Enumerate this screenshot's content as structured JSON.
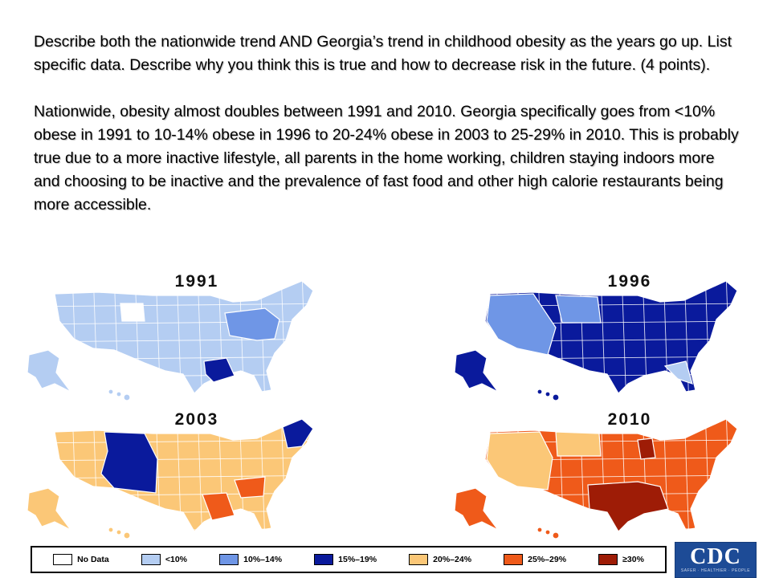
{
  "question": {
    "text": "Describe both the nationwide trend AND Georgia’s trend in childhood obesity as the years go up. List specific data.  Describe why you think this is true and how to decrease risk in the future. (4 points)."
  },
  "answer": {
    "text": "Nationwide, obesity almost doubles between 1991 and 2010.  Georgia specifically goes from <10% obese in 1991 to 10-14% obese in 1996 to 20-24% obese in 2003 to 25-29% in 2010.  This is probably true due to a more inactive lifestyle, all parents in the home working, children staying indoors more and choosing to be inactive and the prevalence of fast food and other high calorie restaurants being more accessible."
  },
  "colors": {
    "no_data": "#ffffff",
    "lt10": "#b4cdf2",
    "p10_14": "#6f96e6",
    "p15_19": "#0a1a9c",
    "p20_24": "#fbc777",
    "p25_29": "#ef5a1a",
    "ge30": "#9e1c06"
  },
  "maps": [
    {
      "year": "1991",
      "base": "lt10",
      "accents": [
        "p10_14",
        "p15_19",
        "no_data"
      ]
    },
    {
      "year": "1996",
      "base": "p15_19",
      "accents": [
        "p10_14",
        "lt10"
      ]
    },
    {
      "year": "2003",
      "base": "p20_24",
      "accents": [
        "p15_19",
        "p25_29"
      ]
    },
    {
      "year": "2010",
      "base": "p25_29",
      "accents": [
        "p20_24",
        "ge30"
      ]
    }
  ],
  "legend": [
    {
      "key": "no_data",
      "label": "No Data"
    },
    {
      "key": "lt10",
      "label": "<10%"
    },
    {
      "key": "p10_14",
      "label": "10%–14%"
    },
    {
      "key": "p15_19",
      "label": "15%–19%"
    },
    {
      "key": "p20_24",
      "label": "20%–24%"
    },
    {
      "key": "p25_29",
      "label": "25%–29%"
    },
    {
      "key": "ge30",
      "label": "≥30%"
    }
  ],
  "logo": {
    "text": "CDC",
    "tagline": "SAFER · HEALTHIER · PEOPLE"
  }
}
